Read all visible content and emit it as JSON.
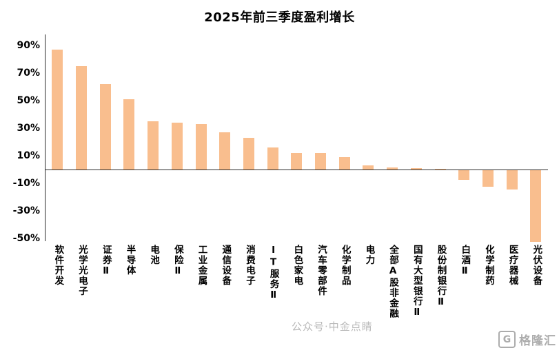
{
  "chart_data": {
    "type": "bar",
    "title": "2025年前三季度盈利增长",
    "categories": [
      "软件开发",
      "光学光电子",
      "证券Ⅱ",
      "半导体",
      "电池",
      "保险Ⅱ",
      "工业金属",
      "通信设备",
      "消费电子",
      "IT服务Ⅱ",
      "白色家电",
      "汽车零部件",
      "化学制品",
      "电力",
      "全部A股非金融",
      "国有大型银行Ⅱ",
      "股份制银行Ⅱ",
      "白酒Ⅱ",
      "化学制药",
      "医疗器械",
      "光伏设备"
    ],
    "values": [
      87,
      75,
      62,
      51,
      35,
      34,
      33,
      27,
      23,
      16,
      12,
      12,
      9,
      3,
      1.5,
      1,
      0.5,
      -7,
      -12,
      -14,
      -52
    ],
    "unit": "%",
    "y_ticks": [
      90,
      70,
      50,
      30,
      10,
      -10,
      -30,
      -50
    ],
    "y_tick_labels": [
      "90%",
      "70%",
      "50%",
      "30%",
      "10%",
      "-10%",
      "-30%",
      "-50%"
    ],
    "ylim": [
      -55,
      95
    ],
    "bar_color": "#F9BE8E",
    "grid": false,
    "legend": "none",
    "xlabel": "",
    "ylabel": ""
  },
  "watermark": {
    "text": "公众号·中金点睛"
  },
  "logo": {
    "icon": "G",
    "text": "格隆汇"
  }
}
